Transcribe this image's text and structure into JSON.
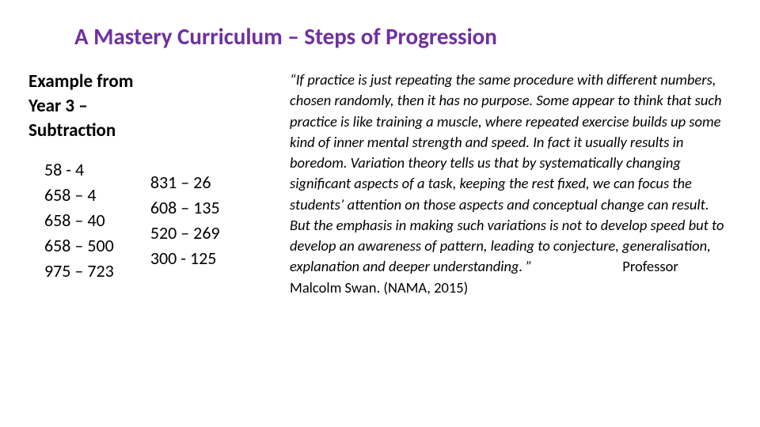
{
  "title_color": "#7030a0",
  "text_color": "#000000",
  "background": "#ffffff",
  "title": "A Mastery Curriculum – Steps of Progression",
  "example_label_line1": "Example from",
  "example_label_line2": "Year 3 –",
  "example_label_line3": "Subtraction",
  "colA": {
    "r1": "58 - 4",
    "r2": "658 – 4",
    "r3": "658 – 40",
    "r4": "658 – 500",
    "r5": "975 – 723"
  },
  "colB": {
    "r1": "831 – 26",
    "r2": "608 – 135",
    "r3": "520 – 269",
    "r4": "300 - 125"
  },
  "quote": "“If practice is just repeating the same procedure with different numbers, chosen randomly, then it has no purpose. Some appear to think that such practice is like training a muscle, where repeated exercise builds up some kind of inner mental strength and speed. In fact it usually results in boredom. Variation theory tells us that by systematically changing significant aspects of a task, keeping the rest fixed, we can focus the students’ attention on those aspects and conceptual change can result. But the emphasis in making such variations is not to develop speed but to develop an awareness of pattern, leading to conjecture, generalisation, explanation and deeper understanding. ”",
  "attribution": "Professor Malcolm Swan. (NAMA, 2015)"
}
